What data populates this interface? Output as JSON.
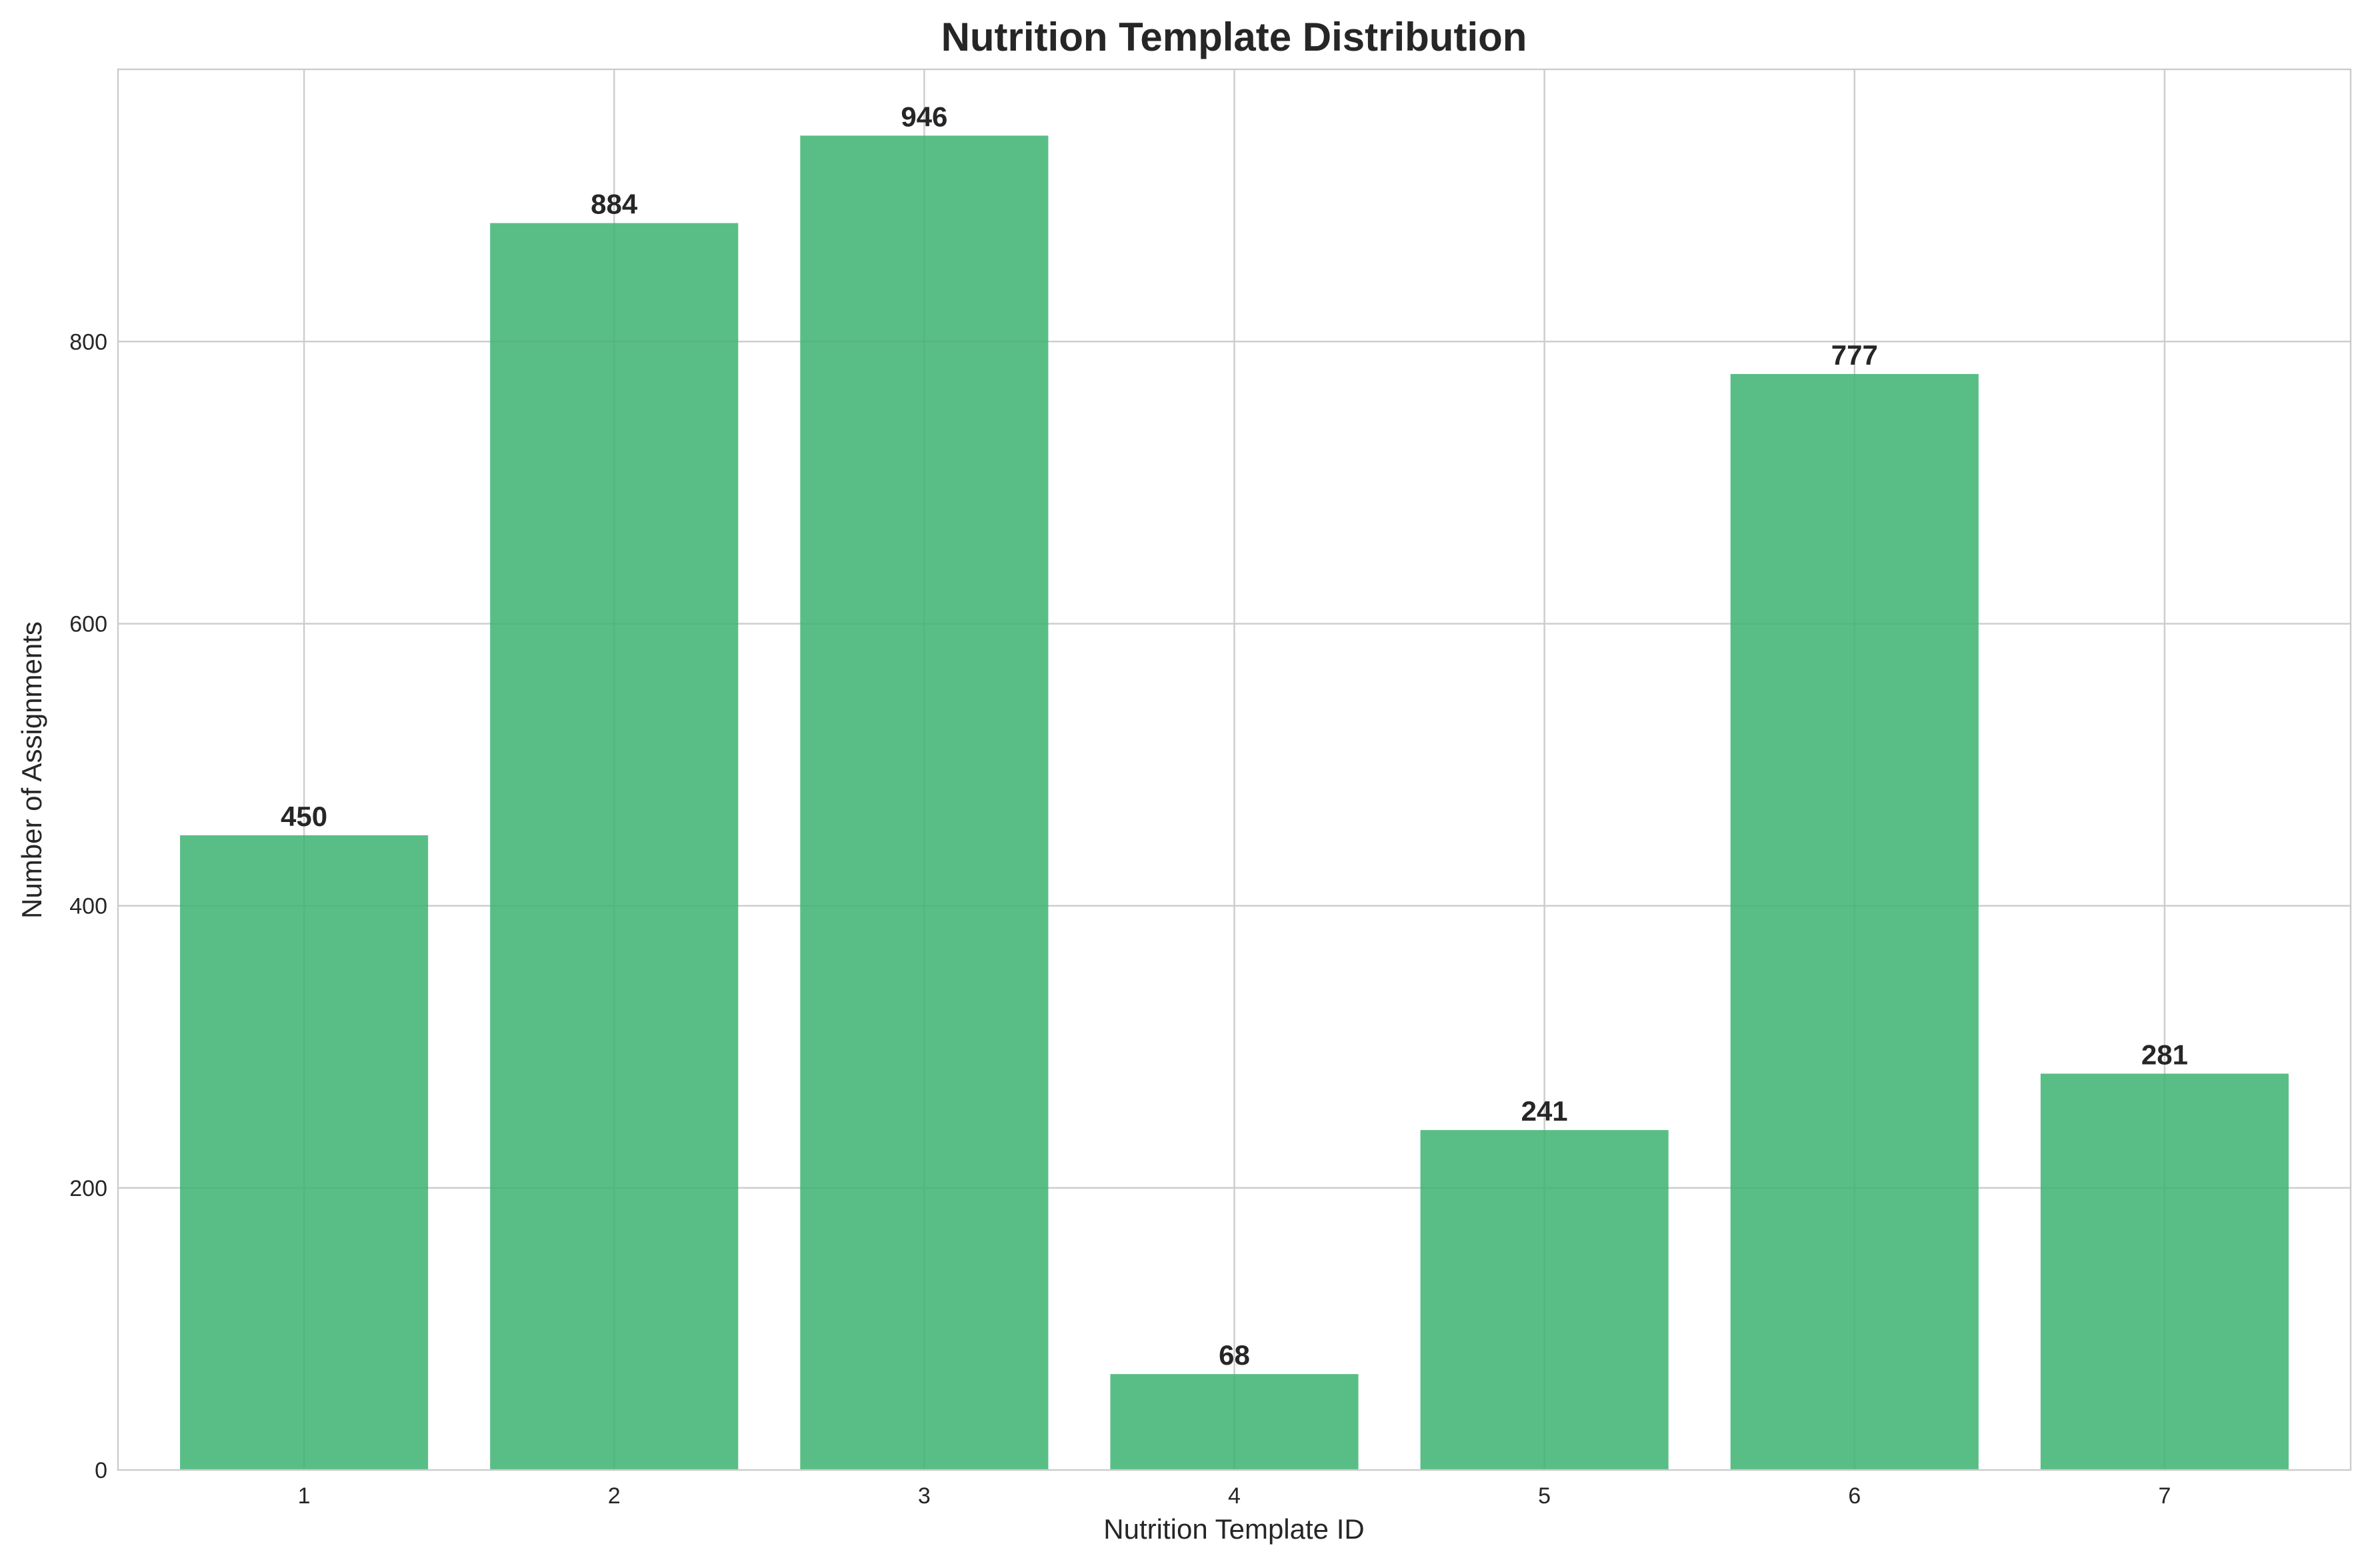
{
  "chart_data": {
    "type": "bar",
    "title": "Nutrition Template Distribution",
    "xlabel": "Nutrition Template ID",
    "ylabel": "Number of Assignments",
    "categories": [
      "1",
      "2",
      "3",
      "4",
      "5",
      "6",
      "7"
    ],
    "values": [
      450,
      884,
      946,
      68,
      241,
      777,
      281
    ],
    "data_labels": [
      "450",
      "884",
      "946",
      "68",
      "241",
      "777",
      "281"
    ],
    "ylim": [
      0,
      993
    ],
    "yticks": [
      0,
      200,
      400,
      600,
      800
    ],
    "ytick_labels": [
      "0",
      "200",
      "400",
      "600",
      "800"
    ],
    "grid": true,
    "bar_color": "#3cb371",
    "bar_opacity": 0.85
  }
}
